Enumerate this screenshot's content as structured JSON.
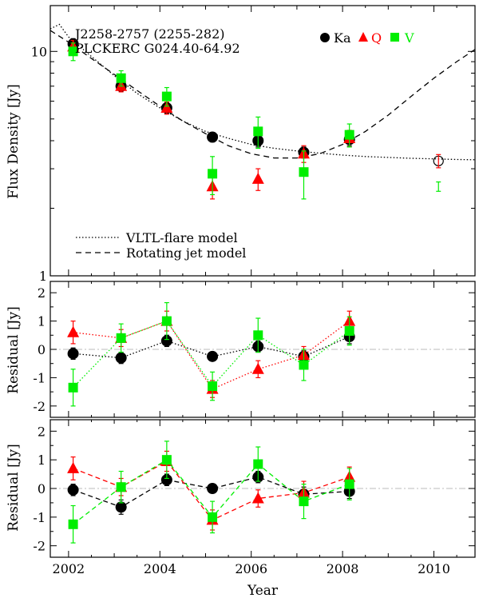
{
  "colors": {
    "ka": "#000000",
    "q": "#ff0000",
    "v": "#00ee00",
    "zero_line": "#bbbbbb"
  },
  "chart_data": [
    {
      "type": "scatter",
      "id": "flux",
      "title": "J2258-2757 (2255-282)",
      "subtitle": "PLCKERC G024.40-64.92",
      "ylabel": "Flux Density [Jy]",
      "xlabel": "",
      "yscale": "log",
      "xlim": [
        2001.6,
        2010.9
      ],
      "ylim": [
        1,
        16
      ],
      "ytick_labels": [
        "1",
        "10"
      ],
      "legend": {
        "placement": "top-right",
        "entries": [
          "Ka",
          "Q",
          "V"
        ]
      },
      "series": [
        {
          "name": "Ka",
          "marker": "circle",
          "points": [
            [
              2002.1,
              10.8,
              0.6
            ],
            [
              2003.15,
              7.0,
              0.35
            ],
            [
              2004.15,
              5.6,
              0.3
            ],
            [
              2005.15,
              4.15,
              0.2
            ],
            [
              2006.15,
              4.0,
              0.25
            ],
            [
              2007.15,
              3.55,
              0.2
            ],
            [
              2008.15,
              4.05,
              0.25
            ]
          ]
        },
        {
          "name": "Q",
          "marker": "triangle",
          "points": [
            [
              2002.1,
              10.5,
              0.7
            ],
            [
              2003.15,
              7.0,
              0.4
            ],
            [
              2004.15,
              5.6,
              0.35
            ],
            [
              2005.15,
              2.5,
              0.3
            ],
            [
              2006.15,
              2.7,
              0.3
            ],
            [
              2007.15,
              3.5,
              0.3
            ],
            [
              2008.15,
              4.1,
              0.35
            ]
          ]
        },
        {
          "name": "V",
          "marker": "square",
          "points": [
            [
              2002.1,
              10.0,
              0.9
            ],
            [
              2003.15,
              7.6,
              0.6
            ],
            [
              2004.15,
              6.3,
              0.6
            ],
            [
              2005.15,
              2.85,
              0.55
            ],
            [
              2006.15,
              4.4,
              0.7
            ],
            [
              2007.15,
              2.9,
              0.7
            ],
            [
              2008.15,
              4.25,
              0.5
            ]
          ]
        }
      ],
      "later_points": [
        {
          "name": "Ka",
          "marker": "open-circle",
          "x": 2010.1,
          "y": 3.25,
          "err": 0.25
        },
        {
          "name": "Q",
          "marker": "errorbar",
          "x": 2010.1,
          "y": 3.25,
          "err": 0.22
        },
        {
          "name": "V",
          "marker": "errorbar",
          "x": 2010.1,
          "y": 2.5,
          "err": 0.12
        }
      ],
      "models": [
        {
          "name": "VLTL-flare model",
          "style": "dotted",
          "points": [
            [
              2001.6,
              12.6
            ],
            [
              2001.8,
              13.2
            ],
            [
              2002.0,
              11.6
            ],
            [
              2002.5,
              9.5
            ],
            [
              2003.0,
              7.8
            ],
            [
              2003.5,
              6.5
            ],
            [
              2004.0,
              5.6
            ],
            [
              2004.5,
              4.9
            ],
            [
              2005.0,
              4.4
            ],
            [
              2005.5,
              4.1
            ],
            [
              2006.0,
              3.85
            ],
            [
              2006.5,
              3.7
            ],
            [
              2007.0,
              3.6
            ],
            [
              2007.5,
              3.52
            ],
            [
              2008.0,
              3.45
            ],
            [
              2008.5,
              3.4
            ],
            [
              2009.0,
              3.37
            ],
            [
              2009.5,
              3.34
            ],
            [
              2010.0,
              3.32
            ],
            [
              2010.5,
              3.3
            ],
            [
              2010.9,
              3.29
            ]
          ]
        },
        {
          "name": "Rotating jet model",
          "style": "dashed",
          "points": [
            [
              2001.6,
              12.4
            ],
            [
              2002.0,
              11.0
            ],
            [
              2002.5,
              9.3
            ],
            [
              2003.0,
              7.9
            ],
            [
              2003.5,
              6.7
            ],
            [
              2004.0,
              5.7
            ],
            [
              2004.5,
              4.9
            ],
            [
              2005.0,
              4.3
            ],
            [
              2005.5,
              3.8
            ],
            [
              2006.0,
              3.5
            ],
            [
              2006.5,
              3.35
            ],
            [
              2007.0,
              3.35
            ],
            [
              2007.5,
              3.5
            ],
            [
              2008.0,
              3.85
            ],
            [
              2008.5,
              4.4
            ],
            [
              2009.0,
              5.2
            ],
            [
              2009.5,
              6.3
            ],
            [
              2010.0,
              7.6
            ],
            [
              2010.5,
              9.0
            ],
            [
              2010.9,
              10.2
            ]
          ]
        }
      ]
    },
    {
      "type": "scatter",
      "id": "residual-vltl",
      "ylabel": "Residual [Jy]",
      "xlabel": "",
      "xlim": [
        2001.6,
        2010.9
      ],
      "ylim": [
        -2.4,
        2.4
      ],
      "yticks": [
        -2,
        -1,
        0,
        1,
        2
      ],
      "ytick_labels": [
        "-2",
        "-1",
        "0",
        "1",
        "2"
      ],
      "line_style": "dotted",
      "series": [
        {
          "name": "Ka",
          "marker": "circle",
          "points": [
            [
              2002.1,
              -0.15,
              0.2
            ],
            [
              2003.15,
              -0.3,
              0.2
            ],
            [
              2004.15,
              0.3,
              0.2
            ],
            [
              2005.15,
              -0.25,
              0.15
            ],
            [
              2006.15,
              0.1,
              0.2
            ],
            [
              2007.15,
              -0.25,
              0.2
            ],
            [
              2008.15,
              0.45,
              0.25
            ]
          ]
        },
        {
          "name": "Q",
          "marker": "triangle",
          "points": [
            [
              2002.1,
              0.6,
              0.4
            ],
            [
              2003.15,
              0.4,
              0.3
            ],
            [
              2004.15,
              1.0,
              0.35
            ],
            [
              2005.15,
              -1.4,
              0.3
            ],
            [
              2006.15,
              -0.7,
              0.3
            ],
            [
              2007.15,
              -0.2,
              0.3
            ],
            [
              2008.15,
              1.0,
              0.35
            ]
          ]
        },
        {
          "name": "V",
          "marker": "square",
          "points": [
            [
              2002.1,
              -1.35,
              0.65
            ],
            [
              2003.15,
              0.4,
              0.5
            ],
            [
              2004.15,
              1.0,
              0.65
            ],
            [
              2005.15,
              -1.3,
              0.5
            ],
            [
              2006.15,
              0.5,
              0.6
            ],
            [
              2007.15,
              -0.55,
              0.55
            ],
            [
              2008.15,
              0.65,
              0.5
            ]
          ]
        }
      ]
    },
    {
      "type": "scatter",
      "id": "residual-jet",
      "ylabel": "Residual [Jy]",
      "xlabel": "Year",
      "xlim": [
        2001.6,
        2010.9
      ],
      "ylim": [
        -2.4,
        2.4
      ],
      "yticks": [
        -2,
        -1,
        0,
        1,
        2
      ],
      "ytick_labels": [
        "-2",
        "-1",
        "0",
        "1",
        "2"
      ],
      "xticks": [
        2002,
        2004,
        2006,
        2008,
        2010
      ],
      "xtick_labels": [
        "2002",
        "2004",
        "2006",
        "2008",
        "2010"
      ],
      "line_style": "dashed",
      "series": [
        {
          "name": "Ka",
          "marker": "circle",
          "points": [
            [
              2002.1,
              -0.05,
              0.2
            ],
            [
              2003.15,
              -0.65,
              0.25
            ],
            [
              2004.15,
              0.3,
              0.2
            ],
            [
              2005.15,
              0.0,
              0.15
            ],
            [
              2006.15,
              0.4,
              0.2
            ],
            [
              2007.15,
              -0.2,
              0.25
            ],
            [
              2008.15,
              -0.1,
              0.25
            ]
          ]
        },
        {
          "name": "Q",
          "marker": "triangle",
          "points": [
            [
              2002.1,
              0.7,
              0.4
            ],
            [
              2003.15,
              0.05,
              0.3
            ],
            [
              2004.15,
              0.95,
              0.35
            ],
            [
              2005.15,
              -1.1,
              0.35
            ],
            [
              2006.15,
              -0.35,
              0.3
            ],
            [
              2007.15,
              -0.15,
              0.4
            ],
            [
              2008.15,
              0.4,
              0.35
            ]
          ]
        },
        {
          "name": "V",
          "marker": "square",
          "points": [
            [
              2002.1,
              -1.25,
              0.65
            ],
            [
              2003.15,
              0.05,
              0.55
            ],
            [
              2004.15,
              1.0,
              0.65
            ],
            [
              2005.15,
              -1.0,
              0.55
            ],
            [
              2006.15,
              0.85,
              0.6
            ],
            [
              2007.15,
              -0.45,
              0.6
            ],
            [
              2008.15,
              0.15,
              0.55
            ]
          ]
        }
      ]
    }
  ]
}
